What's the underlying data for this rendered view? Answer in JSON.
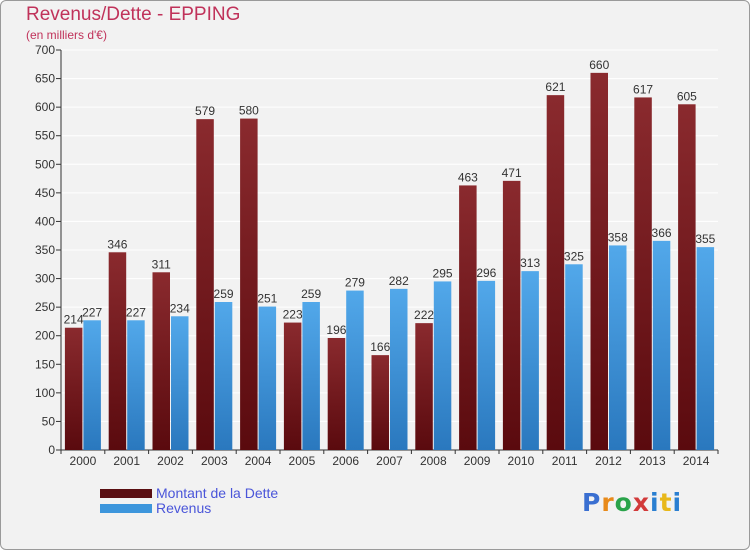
{
  "title": "Revenus/Dette - EPPING",
  "subtitle": "(en milliers d'€)",
  "logo_text": "Proxiti",
  "colors": {
    "debt": "#7a1a1e",
    "revenue": "#3d96dc",
    "background": "#f2f2f2",
    "grid": "#ffffff"
  },
  "chart_data": {
    "type": "bar",
    "categories": [
      "2000",
      "2001",
      "2002",
      "2003",
      "2004",
      "2005",
      "2006",
      "2007",
      "2008",
      "2009",
      "2010",
      "2011",
      "2012",
      "2013",
      "2014"
    ],
    "series": [
      {
        "name": "Montant de la Dette",
        "values": [
          214,
          346,
          311,
          579,
          580,
          223,
          196,
          166,
          222,
          463,
          471,
          621,
          660,
          617,
          605
        ]
      },
      {
        "name": "Revenus",
        "values": [
          227,
          227,
          234,
          259,
          251,
          259,
          279,
          282,
          295,
          296,
          313,
          325,
          358,
          366,
          355
        ]
      }
    ],
    "ylim": [
      0,
      700
    ],
    "yticks": [
      0,
      50,
      100,
      150,
      200,
      250,
      300,
      350,
      400,
      450,
      500,
      550,
      600,
      650,
      700
    ],
    "grid": true,
    "legend": "bottom-left"
  }
}
